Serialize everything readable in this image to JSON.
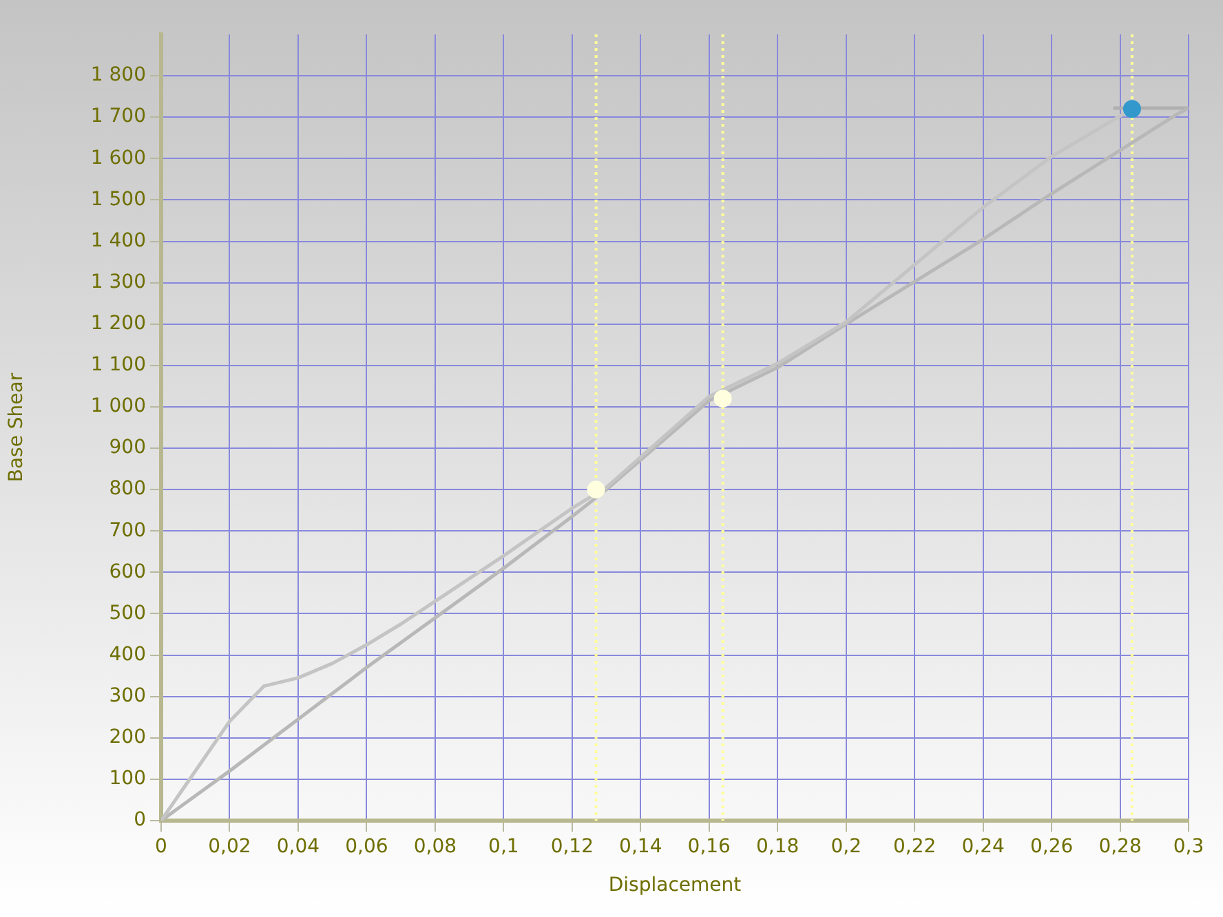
{
  "chart_data": {
    "type": "line",
    "xlabel": "Displacement",
    "ylabel": "Base Shear",
    "xlim": [
      0,
      0.3
    ],
    "ylim": [
      0,
      1900
    ],
    "xticks": [
      0,
      {
        "value": 0.02,
        "label": "0,02"
      },
      {
        "value": 0.04,
        "label": "0,04"
      },
      {
        "value": 0.06,
        "label": "0,06"
      },
      {
        "value": 0.08,
        "label": "0,08"
      },
      {
        "value": 0.1,
        "label": "0,1"
      },
      {
        "value": 0.12,
        "label": "0,12"
      },
      {
        "value": 0.14,
        "label": "0,14"
      },
      {
        "value": 0.16,
        "label": "0,16"
      },
      {
        "value": 0.18,
        "label": "0,18"
      },
      {
        "value": 0.2,
        "label": "0,2"
      },
      {
        "value": 0.22,
        "label": "0,22"
      },
      {
        "value": 0.24,
        "label": "0,24"
      },
      {
        "value": 0.26,
        "label": "0,26"
      },
      {
        "value": 0.28,
        "label": "0,28"
      },
      {
        "value": 0.3,
        "label": "0,3"
      }
    ],
    "yticks": [
      0,
      100,
      200,
      300,
      400,
      500,
      600,
      700,
      800,
      900,
      {
        "value": 1000,
        "label": "1 000"
      },
      {
        "value": 1100,
        "label": "1 100"
      },
      {
        "value": 1200,
        "label": "1 200"
      },
      {
        "value": 1300,
        "label": "1 300"
      },
      {
        "value": 1400,
        "label": "1 400"
      },
      {
        "value": 1500,
        "label": "1 500"
      },
      {
        "value": 1600,
        "label": "1 600"
      },
      {
        "value": 1700,
        "label": "1 700"
      },
      {
        "value": 1800,
        "label": "1 800"
      }
    ],
    "series": [
      {
        "color": "#c4c4c4",
        "x": [
          0,
          0.02,
          0.03,
          0.04,
          0.05,
          0.06,
          0.07,
          0.08,
          0.1,
          0.12,
          0.13,
          0.16,
          0.18,
          0.2,
          0.24,
          0.26,
          0.2835
        ],
        "values": [
          0,
          240,
          325,
          345,
          380,
          425,
          475,
          530,
          640,
          755,
          805,
          1025,
          1105,
          1205,
          1482,
          1605,
          1720
        ]
      },
      {
        "color": "#b8b8b8",
        "x": [
          0,
          0.02,
          0.04,
          0.06,
          0.08,
          0.1,
          0.12,
          0.13,
          0.16,
          0.18,
          0.2,
          0.24,
          0.26,
          0.296,
          0.3
        ],
        "values": [
          0,
          120,
          245,
          370,
          490,
          610,
          735,
          800,
          1015,
          1095,
          1200,
          1405,
          1515,
          1704,
          1722
        ]
      },
      {
        "color": "#b0b0b0",
        "x": [
          0.278,
          0.3
        ],
        "values": [
          1722,
          1722
        ]
      },
      {
        "type": "scatter",
        "x": [
          0.127,
          0.164,
          0.2835
        ],
        "values": [
          800,
          1020,
          1720
        ],
        "colors": [
          "#ffffe0",
          "#ffffe0",
          "#3399cc"
        ],
        "marker": "circle"
      }
    ],
    "ref_lines": [
      {
        "axis": "x",
        "value": 0.127,
        "color": "#ffff99",
        "line_style": "dotted"
      },
      {
        "axis": "x",
        "value": 0.164,
        "color": "#ffff99",
        "line_style": "dotted"
      },
      {
        "axis": "x",
        "value": 0.2835,
        "color": "#ffff99",
        "line_style": "dotted"
      }
    ],
    "grid": true,
    "line_style": "solid",
    "marker": "none"
  }
}
